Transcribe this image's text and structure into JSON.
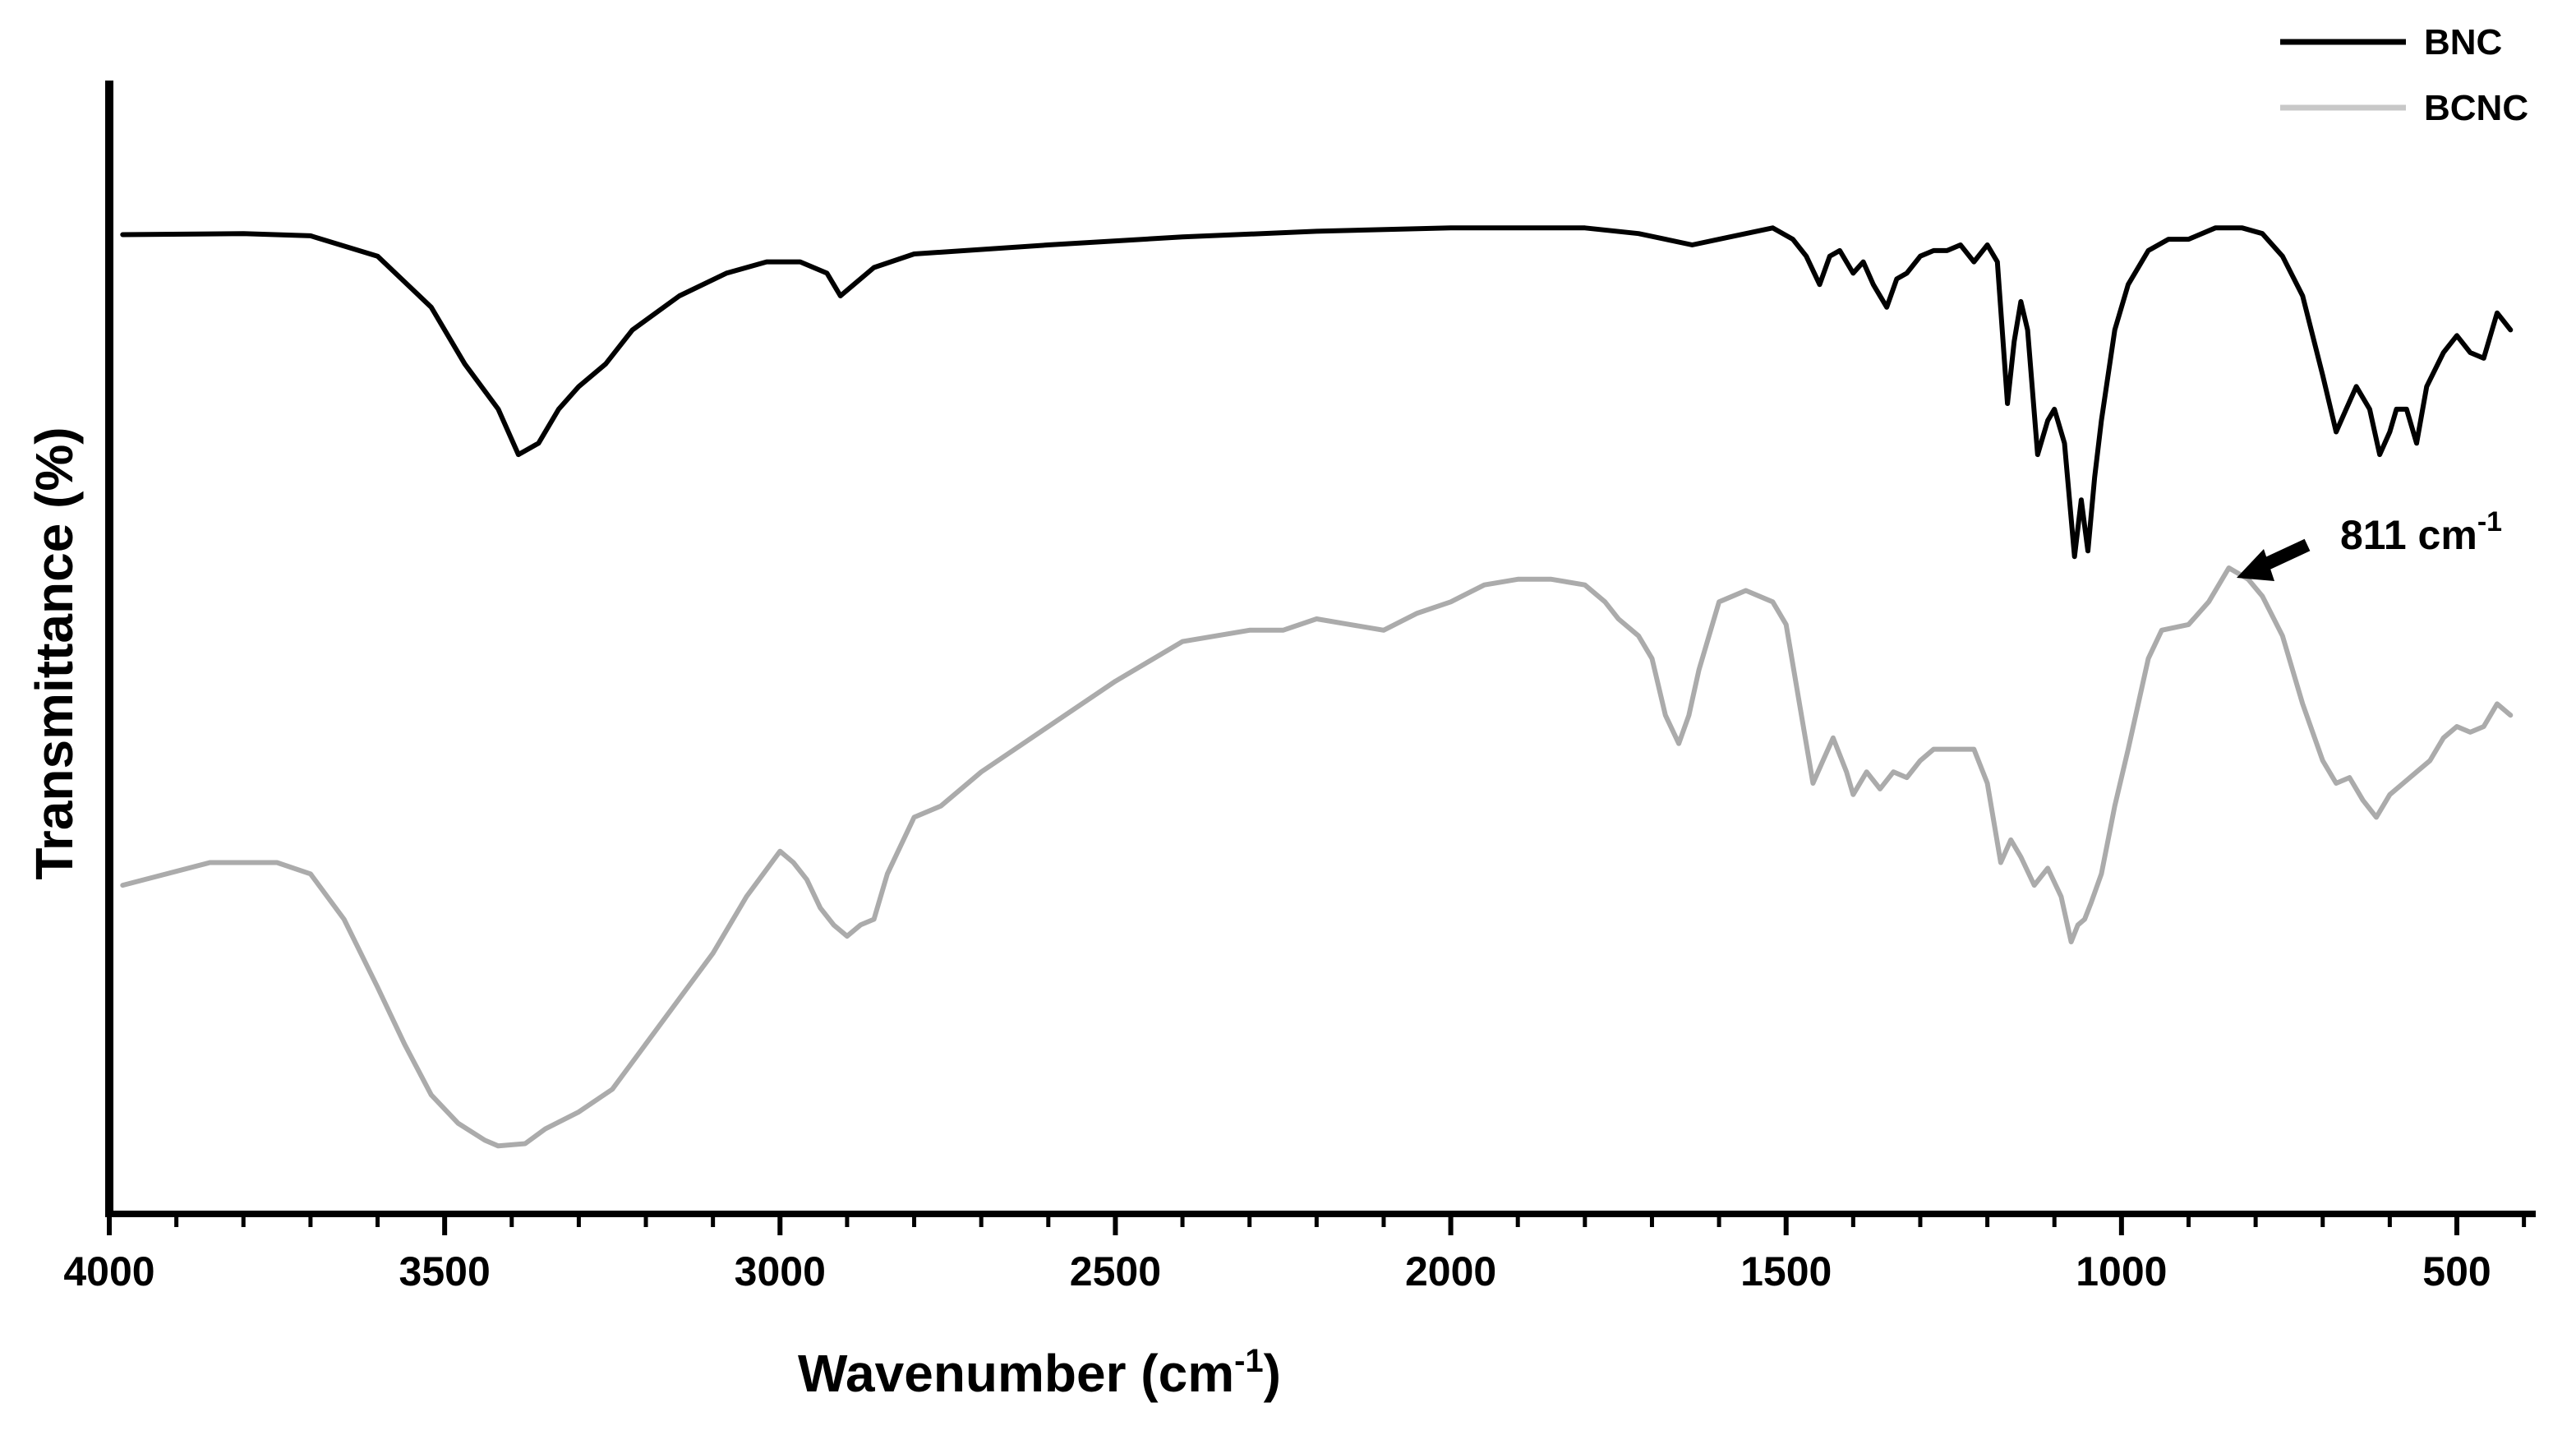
{
  "chart_data": {
    "type": "line",
    "title": "",
    "xlabel": "Wavenumber (cm",
    "xlabel_sup": "-1",
    "xlabel_end": ")",
    "ylabel": "Transmittance (%)",
    "xlim": [
      4000,
      400
    ],
    "x_reversed": true,
    "x_ticks": [
      4000,
      3500,
      3000,
      2500,
      2000,
      1500,
      1000,
      500
    ],
    "x_minor_step": 100,
    "ylim": [
      0,
      100
    ],
    "y_ticks_shown": false,
    "grid": false,
    "legend_position": "top-right",
    "annotations": [
      {
        "text": "811 cm",
        "sup": "-1",
        "x": 811,
        "series": "BCNC"
      }
    ],
    "series": [
      {
        "name": "BNC",
        "color": "#000000",
        "points": [
          [
            3980,
            86.4
          ],
          [
            3800,
            86.5
          ],
          [
            3700,
            86.3
          ],
          [
            3600,
            84.5
          ],
          [
            3520,
            80
          ],
          [
            3470,
            75
          ],
          [
            3420,
            71
          ],
          [
            3390,
            67
          ],
          [
            3360,
            68
          ],
          [
            3330,
            71
          ],
          [
            3300,
            73
          ],
          [
            3260,
            75
          ],
          [
            3220,
            78
          ],
          [
            3150,
            81
          ],
          [
            3080,
            83
          ],
          [
            3020,
            84
          ],
          [
            2970,
            84
          ],
          [
            2930,
            83
          ],
          [
            2910,
            81
          ],
          [
            2890,
            82
          ],
          [
            2860,
            83.5
          ],
          [
            2800,
            84.7
          ],
          [
            2600,
            85.5
          ],
          [
            2400,
            86.2
          ],
          [
            2200,
            86.7
          ],
          [
            2000,
            87
          ],
          [
            1800,
            87
          ],
          [
            1720,
            86.5
          ],
          [
            1680,
            86
          ],
          [
            1640,
            85.5
          ],
          [
            1600,
            86
          ],
          [
            1560,
            86.5
          ],
          [
            1520,
            87
          ],
          [
            1490,
            86
          ],
          [
            1470,
            84.5
          ],
          [
            1450,
            82
          ],
          [
            1435,
            84.5
          ],
          [
            1420,
            85
          ],
          [
            1400,
            83
          ],
          [
            1385,
            84
          ],
          [
            1370,
            82
          ],
          [
            1350,
            80
          ],
          [
            1335,
            82.5
          ],
          [
            1320,
            83
          ],
          [
            1300,
            84.5
          ],
          [
            1280,
            85
          ],
          [
            1260,
            85
          ],
          [
            1240,
            85.5
          ],
          [
            1220,
            84
          ],
          [
            1200,
            85.5
          ],
          [
            1185,
            84
          ],
          [
            1170,
            71.5
          ],
          [
            1160,
            77
          ],
          [
            1150,
            80.5
          ],
          [
            1140,
            78
          ],
          [
            1125,
            67
          ],
          [
            1110,
            70
          ],
          [
            1100,
            71
          ],
          [
            1085,
            68
          ],
          [
            1070,
            58
          ],
          [
            1060,
            63
          ],
          [
            1050,
            58.5
          ],
          [
            1040,
            65
          ],
          [
            1030,
            70
          ],
          [
            1010,
            78
          ],
          [
            990,
            82
          ],
          [
            960,
            85
          ],
          [
            930,
            86
          ],
          [
            900,
            86
          ],
          [
            860,
            87
          ],
          [
            820,
            87
          ],
          [
            790,
            86.5
          ],
          [
            760,
            84.5
          ],
          [
            730,
            81
          ],
          [
            700,
            74
          ],
          [
            680,
            69
          ],
          [
            665,
            71
          ],
          [
            650,
            73
          ],
          [
            630,
            71
          ],
          [
            615,
            67
          ],
          [
            600,
            69
          ],
          [
            590,
            71
          ],
          [
            575,
            71
          ],
          [
            560,
            68
          ],
          [
            545,
            73
          ],
          [
            520,
            76
          ],
          [
            500,
            77.5
          ],
          [
            480,
            76
          ],
          [
            460,
            75.5
          ],
          [
            440,
            79.5
          ],
          [
            420,
            78
          ]
        ]
      },
      {
        "name": "BCNC",
        "color": "#ababab",
        "points": [
          [
            3980,
            29
          ],
          [
            3850,
            31
          ],
          [
            3750,
            31
          ],
          [
            3700,
            30
          ],
          [
            3650,
            26
          ],
          [
            3600,
            20
          ],
          [
            3560,
            15
          ],
          [
            3520,
            10.5
          ],
          [
            3480,
            8
          ],
          [
            3440,
            6.5
          ],
          [
            3420,
            6
          ],
          [
            3380,
            6.2
          ],
          [
            3350,
            7.5
          ],
          [
            3300,
            9
          ],
          [
            3250,
            11
          ],
          [
            3200,
            15
          ],
          [
            3150,
            19
          ],
          [
            3100,
            23
          ],
          [
            3050,
            28
          ],
          [
            3000,
            32
          ],
          [
            2980,
            31
          ],
          [
            2960,
            29.5
          ],
          [
            2940,
            27
          ],
          [
            2920,
            25.5
          ],
          [
            2900,
            24.5
          ],
          [
            2880,
            25.5
          ],
          [
            2860,
            26
          ],
          [
            2840,
            30
          ],
          [
            2800,
            35
          ],
          [
            2760,
            36
          ],
          [
            2700,
            39
          ],
          [
            2600,
            43
          ],
          [
            2500,
            47
          ],
          [
            2400,
            50.5
          ],
          [
            2300,
            51.5
          ],
          [
            2250,
            51.5
          ],
          [
            2200,
            52.5
          ],
          [
            2150,
            52
          ],
          [
            2100,
            51.5
          ],
          [
            2050,
            53
          ],
          [
            2000,
            54
          ],
          [
            1950,
            55.5
          ],
          [
            1900,
            56
          ],
          [
            1850,
            56
          ],
          [
            1800,
            55.5
          ],
          [
            1770,
            54
          ],
          [
            1750,
            52.5
          ],
          [
            1720,
            51
          ],
          [
            1700,
            49
          ],
          [
            1680,
            44
          ],
          [
            1660,
            41.5
          ],
          [
            1645,
            44
          ],
          [
            1630,
            48
          ],
          [
            1600,
            54
          ],
          [
            1560,
            55
          ],
          [
            1520,
            54
          ],
          [
            1500,
            52
          ],
          [
            1480,
            45
          ],
          [
            1460,
            38
          ],
          [
            1445,
            40
          ],
          [
            1430,
            42
          ],
          [
            1410,
            39
          ],
          [
            1400,
            37
          ],
          [
            1380,
            39
          ],
          [
            1360,
            37.5
          ],
          [
            1340,
            39
          ],
          [
            1320,
            38.5
          ],
          [
            1300,
            40
          ],
          [
            1280,
            41
          ],
          [
            1250,
            41
          ],
          [
            1220,
            41
          ],
          [
            1200,
            38
          ],
          [
            1180,
            31
          ],
          [
            1165,
            33
          ],
          [
            1150,
            31.5
          ],
          [
            1130,
            29
          ],
          [
            1110,
            30.5
          ],
          [
            1090,
            28
          ],
          [
            1075,
            24
          ],
          [
            1065,
            25.5
          ],
          [
            1055,
            26
          ],
          [
            1045,
            27.5
          ],
          [
            1030,
            30
          ],
          [
            1010,
            36
          ],
          [
            990,
            41
          ],
          [
            960,
            49
          ],
          [
            940,
            51.5
          ],
          [
            900,
            52
          ],
          [
            870,
            54
          ],
          [
            840,
            57
          ],
          [
            811,
            56
          ],
          [
            790,
            54.5
          ],
          [
            760,
            51
          ],
          [
            730,
            45
          ],
          [
            700,
            40
          ],
          [
            680,
            38
          ],
          [
            660,
            38.5
          ],
          [
            640,
            36.5
          ],
          [
            620,
            35
          ],
          [
            600,
            37
          ],
          [
            580,
            38
          ],
          [
            560,
            39
          ],
          [
            540,
            40
          ],
          [
            520,
            42
          ],
          [
            500,
            43
          ],
          [
            480,
            42.5
          ],
          [
            460,
            43
          ],
          [
            440,
            45
          ],
          [
            420,
            44
          ]
        ]
      }
    ]
  }
}
